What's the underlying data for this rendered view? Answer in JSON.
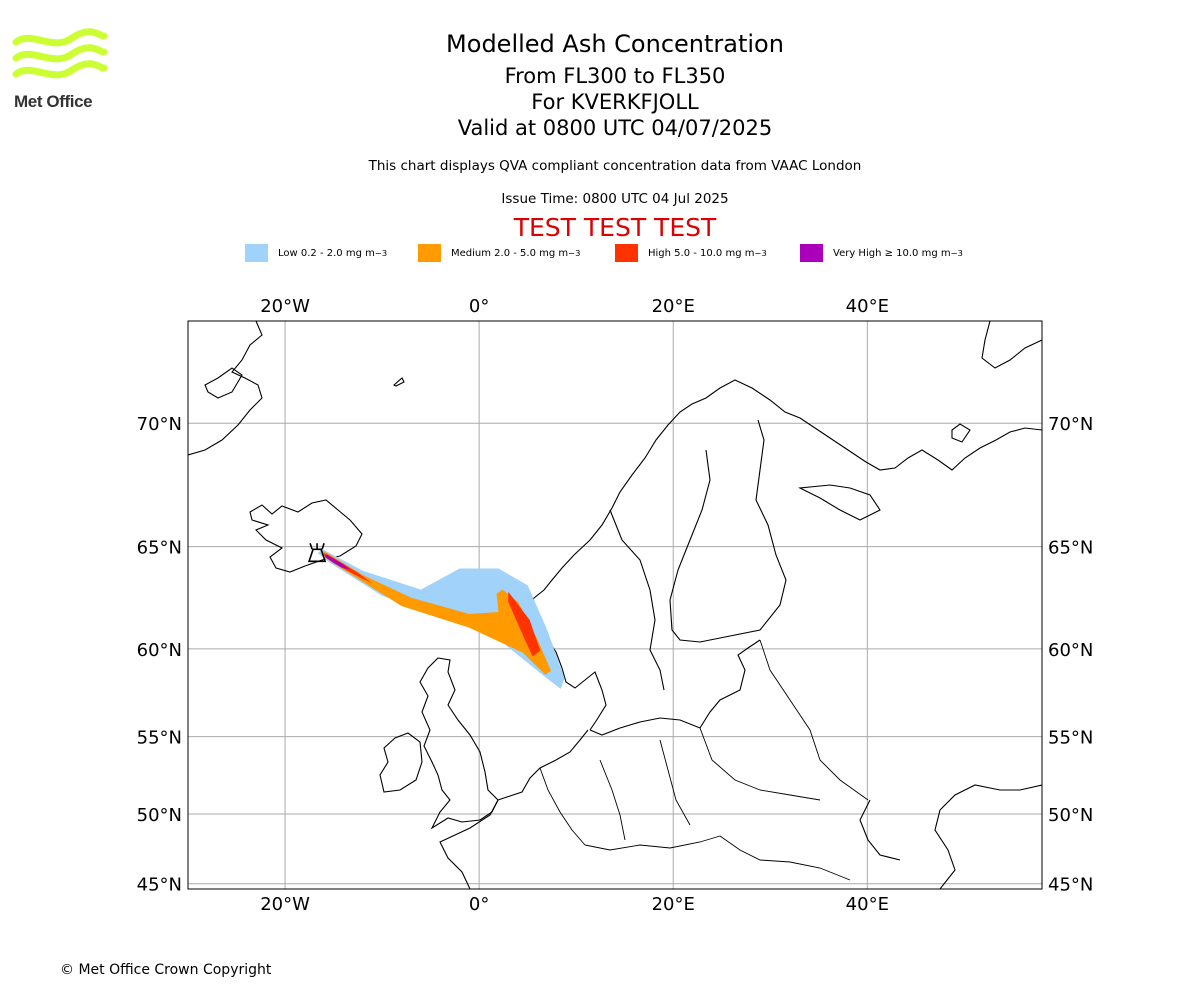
{
  "brand": {
    "name": "Met Office",
    "colors": {
      "logo": "#ccff33",
      "logo_text": "#333333"
    }
  },
  "header": {
    "title": "Modelled Ash Concentration",
    "flight_levels": "From FL300 to FL350",
    "volcano": "For KVERKFJOLL",
    "valid": "Valid at 0800 UTC 04/07/2025",
    "description": "This chart displays QVA compliant concentration data from VAAC London",
    "issue_time": "Issue Time: 0800 UTC 04 Jul 2025",
    "test_banner": "TEST TEST TEST",
    "test_color": "#dd0000"
  },
  "legend": [
    {
      "label": "Low 0.2 - 2.0 mg m",
      "color": "#a0d2fa"
    },
    {
      "label": "Medium 2.0 - 5.0 mg m",
      "color": "#ff9a00"
    },
    {
      "label": "High 5.0 - 10.0 mg m",
      "color": "#ff3300"
    },
    {
      "label": "Very High ≥ 10.0 mg m",
      "color": "#aa00bb"
    }
  ],
  "legend_unit_exp": "−3",
  "map": {
    "lon_range": [
      -30,
      58
    ],
    "lat_range": [
      44.6,
      73.4
    ],
    "lon_ticks": [
      {
        "value": -20,
        "label": "20°W"
      },
      {
        "value": 0,
        "label": "0°"
      },
      {
        "value": 20,
        "label": "20°E"
      },
      {
        "value": 40,
        "label": "40°E"
      }
    ],
    "lat_ticks": [
      {
        "value": 70,
        "label": "70°N"
      },
      {
        "value": 65,
        "label": "65°N"
      },
      {
        "value": 60,
        "label": "60°N"
      },
      {
        "value": 55,
        "label": "55°N"
      },
      {
        "value": 50,
        "label": "50°N"
      },
      {
        "value": 45,
        "label": "45°N"
      }
    ],
    "volcano_location": {
      "name": "Kverkfjoll",
      "lon": -16.7,
      "lat": 64.7
    },
    "ash_plume": {
      "low": [
        [
          -16.2,
          64.9
        ],
        [
          -12,
          63.9
        ],
        [
          -6,
          63.0
        ],
        [
          -2,
          64.0
        ],
        [
          2,
          64.0
        ],
        [
          5,
          63.2
        ],
        [
          7,
          61
        ],
        [
          8.8,
          58.4
        ],
        [
          8.4,
          57.8
        ],
        [
          6.5,
          58.6
        ],
        [
          2,
          60.5
        ],
        [
          -4,
          61.7
        ],
        [
          -10,
          62.7
        ],
        [
          -15.5,
          64.3
        ],
        [
          -16.6,
          64.7
        ]
      ],
      "medium": [
        [
          -16.0,
          64.8
        ],
        [
          -12,
          63.7
        ],
        [
          -7,
          62.6
        ],
        [
          -1,
          61.8
        ],
        [
          2,
          61.9
        ],
        [
          1.8,
          62.8
        ],
        [
          2.4,
          63.0
        ],
        [
          4,
          62.4
        ],
        [
          6,
          60.5
        ],
        [
          7.4,
          58.8
        ],
        [
          6.8,
          58.6
        ],
        [
          4.5,
          59.8
        ],
        [
          -1,
          61.1
        ],
        [
          -8,
          62.2
        ],
        [
          -14.5,
          64.1
        ],
        [
          -16.2,
          64.6
        ]
      ],
      "high": [
        [
          -15.8,
          64.7
        ],
        [
          -12.5,
          63.8
        ],
        [
          -11,
          63.3
        ],
        [
          -12.8,
          63.7
        ],
        [
          -15.2,
          64.3
        ]
      ],
      "high_norway": [
        [
          3.0,
          62.9
        ],
        [
          5.2,
          61.5
        ],
        [
          6.3,
          59.9
        ],
        [
          5.5,
          59.6
        ],
        [
          4.6,
          60.6
        ],
        [
          3.0,
          62.4
        ]
      ],
      "very_high": [
        [
          -16.0,
          64.7
        ],
        [
          -14.0,
          64.2
        ],
        [
          -13.3,
          63.95
        ],
        [
          -14.2,
          64.05
        ],
        [
          -15.8,
          64.5
        ]
      ]
    },
    "line_color": "#000000",
    "grid_color": "#aaaaaa"
  },
  "footer": {
    "copyright": "© Met Office Crown Copyright"
  }
}
